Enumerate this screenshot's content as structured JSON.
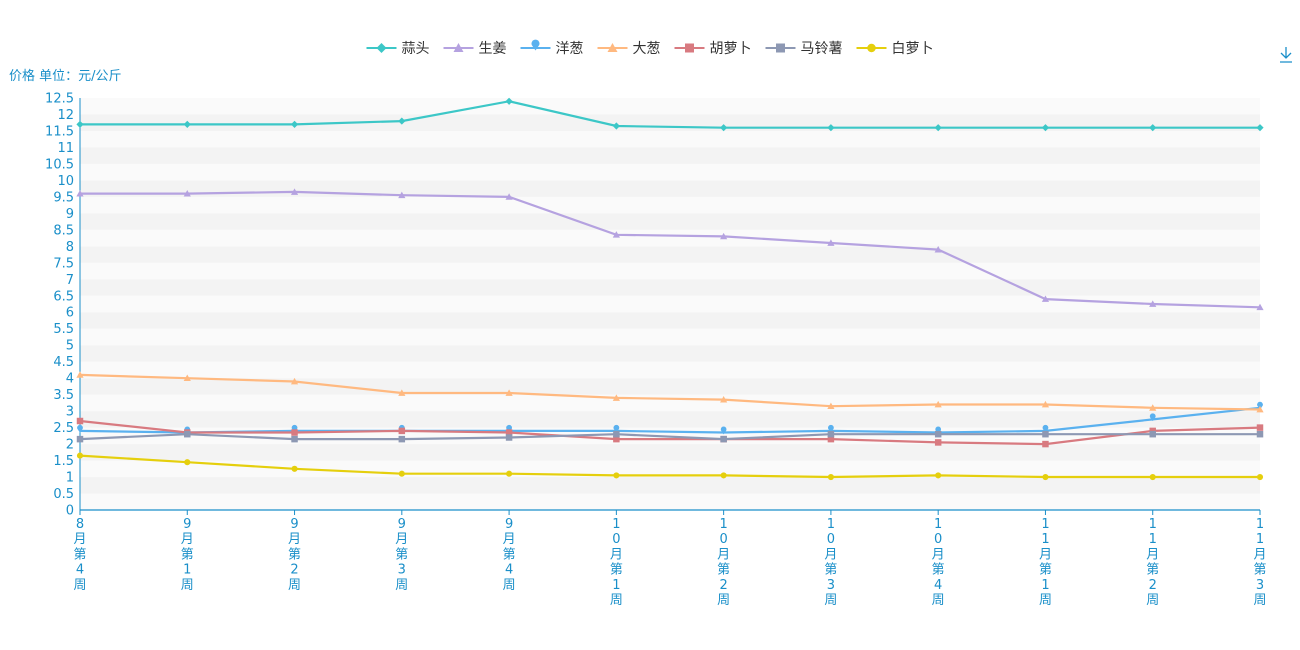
{
  "toolbox": {
    "download_icon": "download-icon"
  },
  "chart_data": {
    "type": "line",
    "ylabel": "价格 单位：元/公斤",
    "ylim": [
      0,
      12.5
    ],
    "ytick_step": 0.5,
    "grid": true,
    "legend_position": "top-center",
    "categories": [
      "8月第4周",
      "9月第1周",
      "9月第2周",
      "9月第3周",
      "9月第4周",
      "10月第1周",
      "10月第2周",
      "10月第3周",
      "10月第4周",
      "11月第1周",
      "11月第2周",
      "11月第3周"
    ],
    "series": [
      {
        "name": "蒜头",
        "color": "#3cc7c7",
        "marker": "diamond",
        "values": [
          11.7,
          11.7,
          11.7,
          11.8,
          12.4,
          11.65,
          11.6,
          11.6,
          11.6,
          11.6,
          11.6,
          11.6
        ]
      },
      {
        "name": "生姜",
        "color": "#b5a2e0",
        "marker": "triangle",
        "values": [
          9.6,
          9.6,
          9.65,
          9.55,
          9.5,
          8.35,
          8.3,
          8.1,
          7.9,
          6.4,
          6.25,
          6.15
        ]
      },
      {
        "name": "洋葱",
        "color": "#5ab1ef",
        "marker": "pin",
        "values": [
          2.4,
          2.35,
          2.4,
          2.4,
          2.4,
          2.4,
          2.35,
          2.4,
          2.35,
          2.4,
          2.75,
          3.1
        ]
      },
      {
        "name": "大葱",
        "color": "#ffb980",
        "marker": "triangle",
        "values": [
          4.1,
          4.0,
          3.9,
          3.55,
          3.55,
          3.4,
          3.35,
          3.15,
          3.2,
          3.2,
          3.1,
          3.05
        ]
      },
      {
        "name": "胡萝卜",
        "color": "#d87a80",
        "marker": "square",
        "values": [
          2.7,
          2.35,
          2.35,
          2.4,
          2.35,
          2.15,
          2.15,
          2.15,
          2.05,
          2.0,
          2.4,
          2.5
        ]
      },
      {
        "name": "马铃薯",
        "color": "#8d98b3",
        "marker": "square",
        "values": [
          2.15,
          2.3,
          2.15,
          2.15,
          2.2,
          2.3,
          2.15,
          2.3,
          2.3,
          2.3,
          2.3,
          2.3
        ]
      },
      {
        "name": "白萝卜",
        "color": "#e5cf0d",
        "marker": "circle",
        "values": [
          1.65,
          1.45,
          1.25,
          1.1,
          1.1,
          1.05,
          1.05,
          1.0,
          1.05,
          1.0,
          1.0,
          1.0
        ]
      }
    ]
  }
}
